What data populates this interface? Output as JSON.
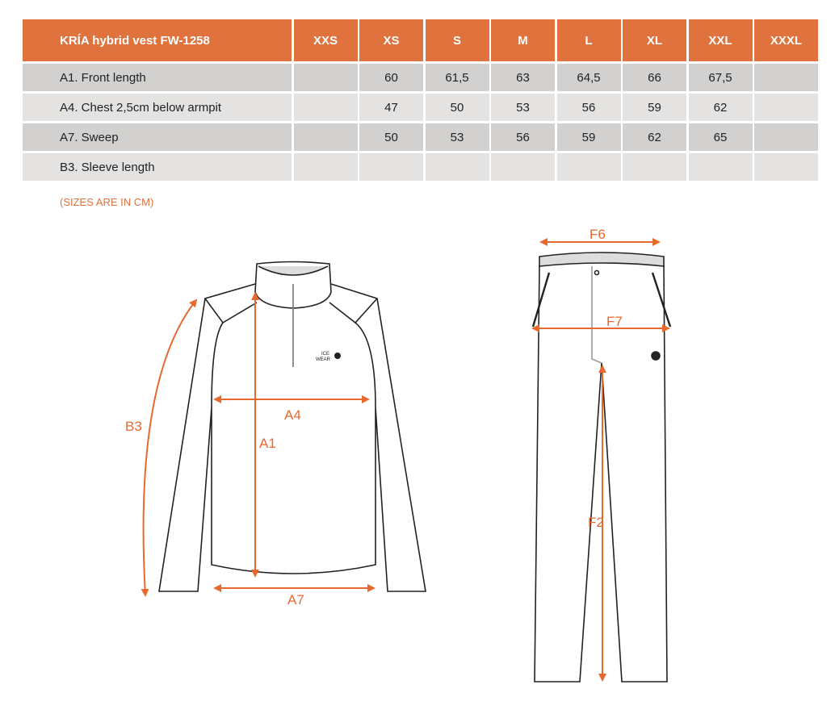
{
  "table": {
    "title": "KRÍA hybrid vest FW-1258",
    "sizes": [
      "XXS",
      "XS",
      "S",
      "M",
      "L",
      "XL",
      "XXL",
      "XXXL"
    ],
    "rows": [
      {
        "label": "A1. Front length",
        "values": [
          "",
          "60",
          "61,5",
          "63",
          "64,5",
          "66",
          "67,5",
          ""
        ]
      },
      {
        "label": "A4. Chest 2,5cm below armpit",
        "values": [
          "",
          "47",
          "50",
          "53",
          "56",
          "59",
          "62",
          ""
        ]
      },
      {
        "label": "A7. Sweep",
        "values": [
          "",
          "50",
          "53",
          "56",
          "59",
          "62",
          "65",
          ""
        ]
      },
      {
        "label": "B3. Sleeve length",
        "values": [
          "",
          "",
          "",
          "",
          "",
          "",
          "",
          ""
        ]
      }
    ]
  },
  "note": "(SIZES ARE IN CM)",
  "diagram": {
    "top_labels": [
      "B3",
      "A1",
      "A4",
      "A7"
    ],
    "pants_labels": [
      "F6",
      "F7",
      "F2"
    ],
    "logo": "ICE WEAR"
  },
  "colors": {
    "accent": "#e0723e",
    "row_dark": "#d2d1cf",
    "row_light": "#e4e3e1"
  }
}
